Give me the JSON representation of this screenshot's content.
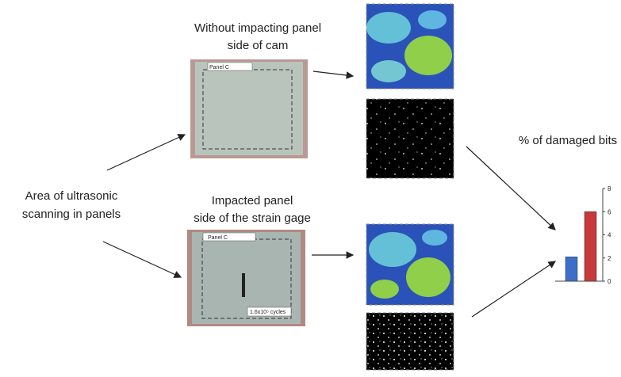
{
  "panels": [
    {
      "title": [
        "Without impacting panel",
        "side of cam"
      ],
      "tag": "Panel C"
    },
    {
      "title": [
        "Impacted panel",
        "side of the strain gage"
      ],
      "tag": "Panel C",
      "note": "1.6x10⁵ cycles"
    }
  ],
  "left_label": [
    "Area of ultrasonic",
    "scanning in panels"
  ],
  "chart_data": {
    "type": "bar",
    "title": "% of damaged bits",
    "values": [
      2.1,
      6
    ],
    "colors": [
      "#3d6fc8",
      "#c8393b"
    ],
    "ylim": [
      0,
      8
    ],
    "yticks": [
      0,
      2,
      4,
      6,
      8
    ]
  }
}
